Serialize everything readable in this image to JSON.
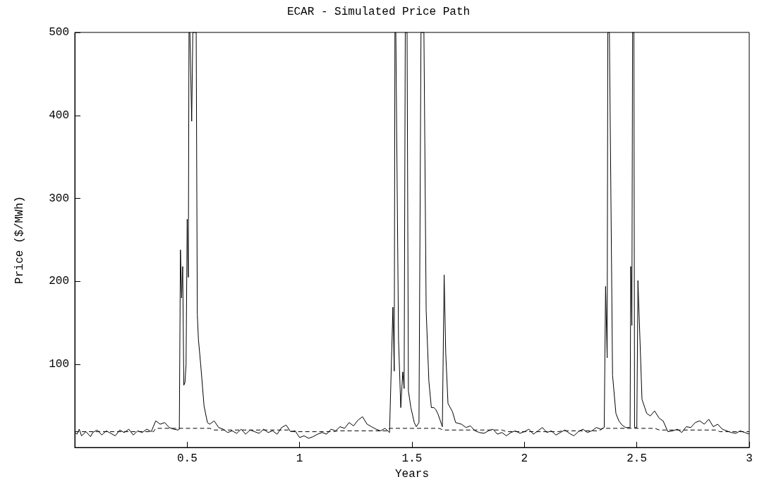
{
  "chart_data": {
    "type": "line",
    "title": "ECAR - Simulated Price Path",
    "xlabel": "Years",
    "ylabel": "Price ($/MWh)",
    "xlim": [
      0,
      3
    ],
    "ylim": [
      0,
      500
    ],
    "xticks": [
      0.5,
      1,
      1.5,
      2,
      2.5,
      3
    ],
    "yticks": [
      100,
      200,
      300,
      400,
      500
    ],
    "grid": false,
    "marker": "none",
    "series": [
      {
        "color": "#000000",
        "line_style": "solid",
        "x": [
          0,
          0.01,
          0.02,
          0.03,
          0.05,
          0.07,
          0.08,
          0.1,
          0.12,
          0.14,
          0.16,
          0.18,
          0.2,
          0.22,
          0.24,
          0.26,
          0.28,
          0.3,
          0.32,
          0.34,
          0.36,
          0.38,
          0.4,
          0.42,
          0.44,
          0.46,
          0.465,
          0.47,
          0.475,
          0.48,
          0.485,
          0.49,
          0.495,
          0.5,
          0.505,
          0.508,
          0.512,
          0.52,
          0.525,
          0.53,
          0.54,
          0.545,
          0.55,
          0.56,
          0.575,
          0.59,
          0.6,
          0.62,
          0.64,
          0.66,
          0.68,
          0.7,
          0.72,
          0.74,
          0.76,
          0.78,
          0.8,
          0.82,
          0.84,
          0.86,
          0.88,
          0.9,
          0.92,
          0.94,
          0.96,
          0.98,
          1.0,
          1.02,
          1.04,
          1.06,
          1.08,
          1.1,
          1.12,
          1.14,
          1.16,
          1.18,
          1.2,
          1.22,
          1.24,
          1.26,
          1.28,
          1.3,
          1.32,
          1.34,
          1.36,
          1.38,
          1.4,
          1.415,
          1.421,
          1.424,
          1.428,
          1.44,
          1.45,
          1.459,
          1.465,
          1.47,
          1.475,
          1.478,
          1.484,
          1.495,
          1.51,
          1.519,
          1.531,
          1.54,
          1.553,
          1.563,
          1.575,
          1.586,
          1.597,
          1.605,
          1.616,
          1.635,
          1.643,
          1.65,
          1.66,
          1.68,
          1.694,
          1.72,
          1.74,
          1.76,
          1.78,
          1.8,
          1.82,
          1.84,
          1.86,
          1.88,
          1.9,
          1.92,
          1.94,
          1.96,
          1.98,
          2.0,
          2.02,
          2.04,
          2.06,
          2.08,
          2.1,
          2.12,
          2.14,
          2.16,
          2.18,
          2.2,
          2.22,
          2.24,
          2.26,
          2.28,
          2.3,
          2.32,
          2.34,
          2.355,
          2.361,
          2.368,
          2.371,
          2.378,
          2.392,
          2.407,
          2.42,
          2.434,
          2.45,
          2.47,
          2.473,
          2.478,
          2.481,
          2.487,
          2.49,
          2.5,
          2.505,
          2.523,
          2.544,
          2.56,
          2.579,
          2.6,
          2.617,
          2.638,
          2.66,
          2.68,
          2.7,
          2.72,
          2.74,
          2.76,
          2.78,
          2.8,
          2.82,
          2.84,
          2.86,
          2.88,
          2.9,
          2.92,
          2.94,
          2.96,
          2.98,
          3.0
        ],
        "values": [
          18,
          16,
          22,
          14,
          19,
          13,
          18,
          21,
          15,
          20,
          17,
          14,
          21,
          18,
          22,
          15,
          20,
          18,
          22,
          19,
          32,
          28,
          30,
          24,
          22,
          21,
          22,
          238,
          180,
          218,
          75,
          78,
          100,
          275,
          205,
          500,
          500,
          393,
          500,
          500,
          500,
          160,
          130,
          100,
          50,
          30,
          28,
          32,
          24,
          22,
          18,
          20,
          17,
          22,
          16,
          21,
          19,
          17,
          22,
          18,
          20,
          16,
          24,
          27,
          19,
          20,
          12,
          14,
          11,
          13,
          16,
          18,
          16,
          22,
          20,
          25,
          23,
          30,
          26,
          33,
          37,
          28,
          25,
          22,
          20,
          23,
          18,
          169,
          92,
          500,
          500,
          130,
          48,
          91,
          71,
          500,
          500,
          500,
          68,
          48,
          30,
          25,
          30,
          500,
          500,
          165,
          80,
          48,
          48,
          46,
          40,
          25,
          208,
          114,
          53,
          43,
          30,
          28,
          24,
          26,
          20,
          18,
          17,
          20,
          22,
          16,
          18,
          14,
          18,
          20,
          17,
          19,
          22,
          16,
          20,
          24,
          18,
          20,
          15,
          18,
          21,
          17,
          14,
          19,
          22,
          18,
          20,
          24,
          22,
          24,
          194,
          108,
          500,
          500,
          87,
          41,
          32,
          27,
          24,
          24,
          218,
          147,
          500,
          500,
          24,
          24,
          201,
          58,
          41,
          38,
          44,
          35,
          32,
          19,
          20,
          22,
          18,
          25,
          24,
          30,
          32,
          28,
          34,
          25,
          28,
          22,
          20,
          18,
          17,
          20,
          18,
          16
        ]
      },
      {
        "color": "#000000",
        "line_style": "dashed",
        "x": [
          0,
          0.35,
          0.36,
          0.6,
          0.62,
          0.95,
          0.97,
          1.15,
          1.17,
          1.39,
          1.4,
          1.62,
          1.64,
          1.9,
          1.92,
          2.15,
          2.17,
          2.33,
          2.35,
          2.58,
          2.6,
          2.85,
          2.87,
          3.0
        ],
        "values": [
          19,
          19,
          23,
          23,
          21,
          21,
          19,
          19,
          20,
          20,
          23,
          23,
          21,
          21,
          19,
          19,
          20,
          20,
          23,
          23,
          21,
          21,
          19,
          19
        ]
      }
    ]
  }
}
